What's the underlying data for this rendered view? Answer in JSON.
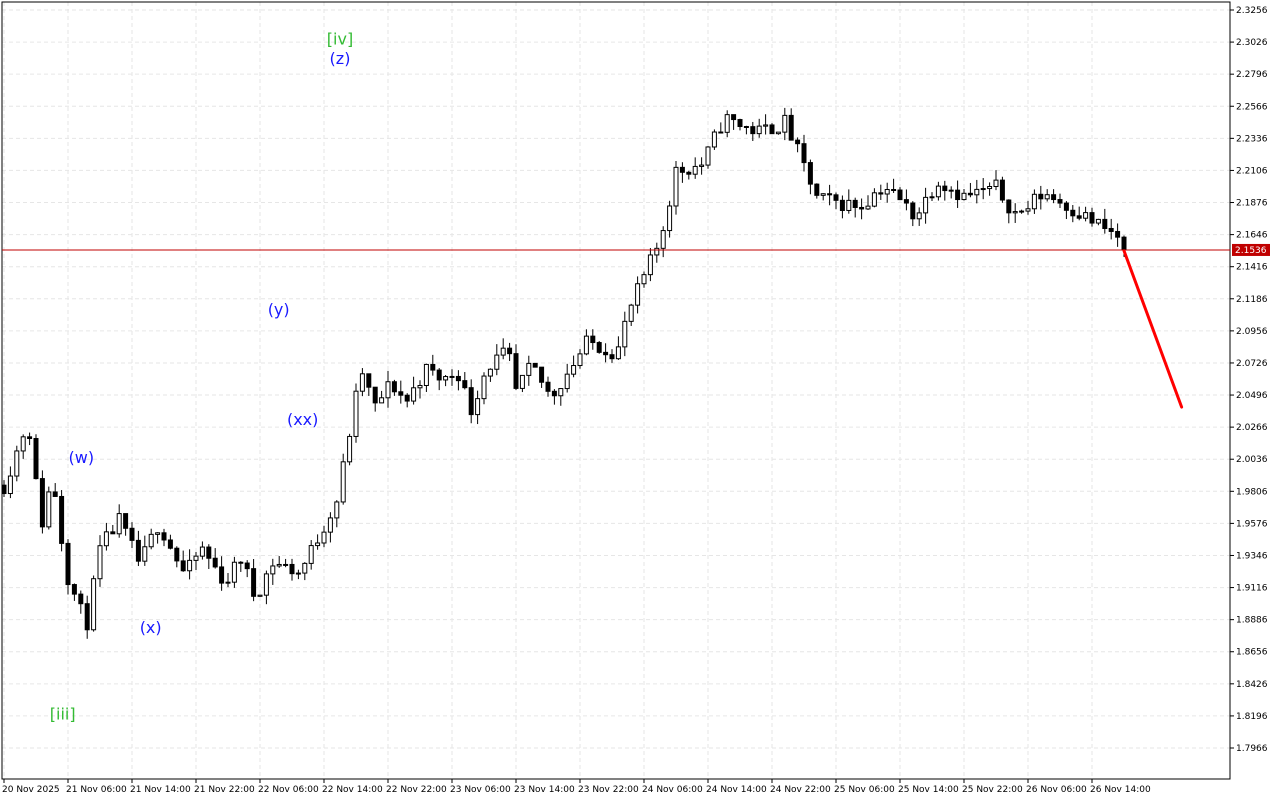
{
  "chart_data": {
    "type": "candlestick",
    "y_ticks": [
      "2.3256",
      "2.3026",
      "2.2796",
      "2.2566",
      "2.2336",
      "2.2106",
      "2.1876",
      "2.1646",
      "2.1416",
      "2.1186",
      "2.0956",
      "2.0726",
      "2.0496",
      "2.0266",
      "2.0036",
      "1.9806",
      "1.9576",
      "1.9346",
      "1.9116",
      "1.8886",
      "1.8656",
      "1.8426",
      "1.8196",
      "1.7966"
    ],
    "x_ticks": [
      "20 Nov 2025",
      "21 Nov 06:00",
      "21 Nov 14:00",
      "21 Nov 22:00",
      "22 Nov 06:00",
      "22 Nov 14:00",
      "22 Nov 22:00",
      "23 Nov 06:00",
      "23 Nov 14:00",
      "23 Nov 22:00",
      "24 Nov 06:00",
      "24 Nov 14:00",
      "24 Nov 22:00",
      "25 Nov 06:00",
      "25 Nov 14:00",
      "25 Nov 22:00",
      "26 Nov 06:00",
      "26 Nov 14:00"
    ],
    "ylim": [
      1.786,
      2.33
    ],
    "bar_count": 176,
    "grid": true,
    "current_price": {
      "value": 2.1536,
      "label": "2.1536",
      "color": "#c00000"
    },
    "forecast": {
      "from_bar": 175,
      "to_bar": 184,
      "from_value": 2.153,
      "to_value": 2.041,
      "color": "#ff0000"
    },
    "colors": {
      "up_fill": "#ffffff",
      "down_fill": "#000000",
      "outline": "#000000",
      "grid": "#e6e6e6"
    },
    "keypoints": [
      [
        0,
        1.985
      ],
      [
        4,
        2.005
      ],
      [
        9,
        2.032
      ],
      [
        14,
        1.955
      ],
      [
        18,
        1.99
      ],
      [
        20,
        1.972
      ],
      [
        23,
        1.925
      ],
      [
        28,
        1.898
      ],
      [
        31,
        1.885
      ],
      [
        36,
        1.938
      ],
      [
        43,
        1.96
      ],
      [
        51,
        1.928
      ],
      [
        58,
        1.958
      ],
      [
        68,
        1.92
      ],
      [
        74,
        1.94
      ],
      [
        83,
        1.915
      ],
      [
        89,
        1.933
      ],
      [
        94,
        1.905
      ],
      [
        101,
        1.93
      ],
      [
        111,
        1.922
      ],
      [
        125,
        1.975
      ],
      [
        134,
        2.068
      ],
      [
        139,
        2.04
      ],
      [
        145,
        2.058
      ],
      [
        151,
        2.045
      ],
      [
        158,
        2.068
      ],
      [
        165,
        2.06
      ],
      [
        170,
        2.068
      ],
      [
        175,
        2.038
      ],
      [
        181,
        2.07
      ],
      [
        189,
        2.08
      ],
      [
        192,
        2.052
      ],
      [
        198,
        2.07
      ],
      [
        205,
        2.048
      ],
      [
        212,
        2.068
      ],
      [
        219,
        2.088
      ],
      [
        230,
        2.08
      ],
      [
        234,
        2.108
      ],
      [
        246,
        2.16
      ],
      [
        252,
        2.21
      ],
      [
        262,
        2.215
      ],
      [
        270,
        2.248
      ],
      [
        283,
        2.238
      ],
      [
        293,
        2.245
      ],
      [
        305,
        2.19
      ],
      [
        321,
        2.185
      ],
      [
        330,
        2.2
      ],
      [
        342,
        2.178
      ],
      [
        350,
        2.204
      ],
      [
        360,
        2.192
      ],
      [
        372,
        2.198
      ],
      [
        380,
        2.178
      ],
      [
        390,
        2.195
      ],
      [
        400,
        2.184
      ],
      [
        410,
        2.172
      ],
      [
        420,
        2.16
      ],
      [
        430,
        2.15
      ]
    ],
    "wave_labels": [
      {
        "text": "[iii]",
        "bar": 22,
        "value": 1.817,
        "color": "#33bb33"
      },
      {
        "text": "(w)",
        "bar": 29,
        "value": 2.001,
        "color": "#1a1aff"
      },
      {
        "text": "(x)",
        "bar": 55,
        "value": 1.879,
        "color": "#1a1aff"
      },
      {
        "text": "(y)",
        "bar": 103,
        "value": 2.107,
        "color": "#1a1aff"
      },
      {
        "text": "(xx)",
        "bar": 112,
        "value": 2.028,
        "color": "#1a1aff"
      },
      {
        "text": "[iv]",
        "bar": 126,
        "value": 2.301,
        "color": "#33bb33"
      },
      {
        "text": "(z)",
        "bar": 126,
        "value": 2.287,
        "color": "#1a1aff"
      }
    ]
  }
}
